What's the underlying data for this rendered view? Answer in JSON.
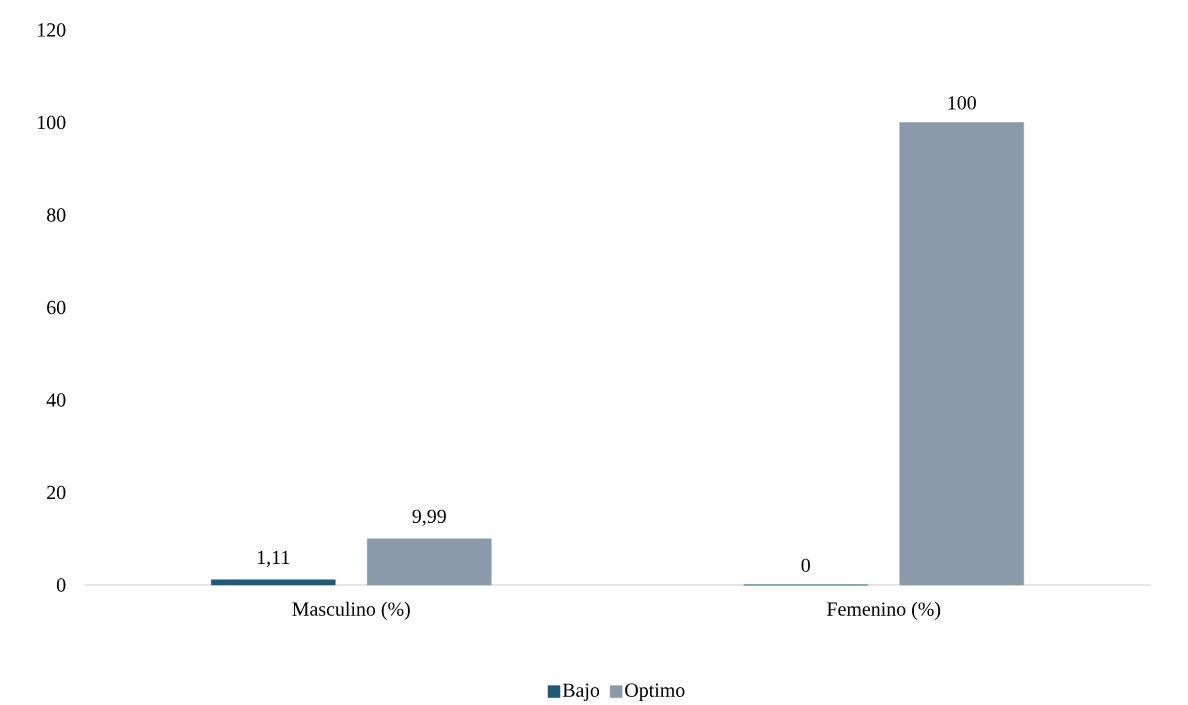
{
  "chart_data": {
    "type": "bar",
    "categories": [
      "Masculino (%)",
      "Femenino (%)"
    ],
    "series": [
      {
        "name": "Bajo",
        "color": "#1f5a7a",
        "values": [
          1.11,
          0
        ],
        "value_labels": [
          "1,11",
          "0"
        ]
      },
      {
        "name": "Optimo",
        "color": "#8a9aab",
        "values": [
          9.99,
          100
        ],
        "value_labels": [
          "9,99",
          "100"
        ]
      }
    ],
    "ylim": [
      0,
      120
    ],
    "yticks": [
      0,
      20,
      40,
      60,
      80,
      100,
      120
    ],
    "legend": "bottom"
  }
}
